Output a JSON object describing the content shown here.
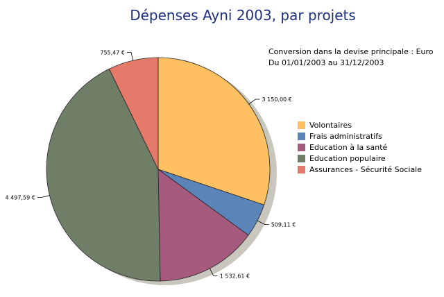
{
  "chart_data": {
    "type": "pie",
    "title": "Dépenses Ayni 2003, par projets",
    "subtitle_lines": [
      "Conversion dans la devise principale : Euro",
      "Du 01/01/2003 au 31/12/2003"
    ],
    "legend_position": "right",
    "slices": [
      {
        "name": "Volontaires",
        "value": 3150.0,
        "label": "3 150,00 €",
        "color": "#ffc061"
      },
      {
        "name": "Frais administratifs",
        "value": 509.11,
        "label": "509,11 €",
        "color": "#5b84b8"
      },
      {
        "name": "Education à la santé",
        "value": 1532.61,
        "label": "1 532,61 €",
        "color": "#a65b7e"
      },
      {
        "name": "Education populaire",
        "value": 4497.59,
        "label": "4 497,59 €",
        "color": "#6f7e66"
      },
      {
        "name": "Assurances - Sécurité Sociale",
        "value": 755.47,
        "label": "755,47 €",
        "color": "#e57a6a"
      }
    ]
  }
}
